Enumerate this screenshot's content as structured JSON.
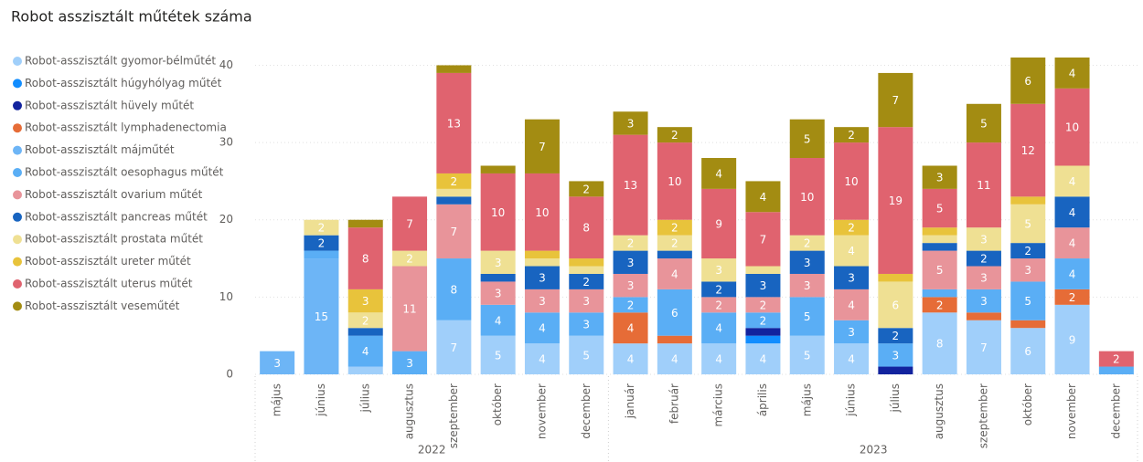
{
  "chart_data": {
    "type": "stacked_bar",
    "title": "Robot asszisztált műtétek száma",
    "categories": [
      "május",
      "június",
      "július",
      "augusztus",
      "szeptember",
      "október",
      "november",
      "december",
      "január",
      "február",
      "március",
      "április",
      "május",
      "június",
      "július",
      "augusztus",
      "szeptember",
      "október",
      "november",
      "december"
    ],
    "x_groups": [
      {
        "label": "2022",
        "count": 8
      },
      {
        "label": "2023",
        "count": 12
      }
    ],
    "ylim": [
      0,
      41
    ],
    "yticks": [
      0,
      10,
      20,
      30,
      40
    ],
    "grid": true,
    "legend": "left",
    "series": [
      {
        "name": "Robot-asszisztált gyomor-bélműtét",
        "color": "#a0cffa",
        "values": [
          null,
          null,
          1,
          null,
          7,
          5,
          4,
          5,
          4,
          4,
          4,
          4,
          5,
          4,
          null,
          8,
          7,
          6,
          9,
          null
        ]
      },
      {
        "name": "Robot-asszisztált húgyhólyag műtét",
        "color": "#118dff",
        "values": [
          null,
          null,
          null,
          null,
          null,
          null,
          null,
          null,
          null,
          null,
          null,
          1,
          null,
          null,
          null,
          null,
          null,
          null,
          null,
          null
        ]
      },
      {
        "name": "Robot-asszisztált hüvely műtét",
        "color": "#12239e",
        "values": [
          null,
          null,
          null,
          null,
          null,
          null,
          null,
          null,
          null,
          null,
          null,
          1,
          null,
          null,
          1,
          null,
          null,
          null,
          null,
          null
        ]
      },
      {
        "name": "Robot-asszisztált lymphadenectomia",
        "color": "#e66c37",
        "values": [
          null,
          null,
          null,
          null,
          null,
          null,
          null,
          null,
          4,
          1,
          null,
          null,
          null,
          null,
          null,
          2,
          1,
          1,
          2,
          null
        ]
      },
      {
        "name": "Robot-asszisztált májműtét",
        "color": "#6db5f6",
        "values": [
          3,
          15,
          null,
          null,
          null,
          null,
          null,
          null,
          null,
          null,
          null,
          null,
          null,
          null,
          null,
          null,
          null,
          null,
          null,
          null
        ]
      },
      {
        "name": "Robot-asszisztált oesophagus műtét",
        "color": "#5aaef5",
        "values": [
          null,
          1,
          4,
          3,
          8,
          4,
          4,
          3,
          2,
          6,
          4,
          2,
          5,
          3,
          3,
          1,
          3,
          5,
          4,
          1
        ]
      },
      {
        "name": "Robot-asszisztált ovarium műtét",
        "color": "#e8949a",
        "values": [
          null,
          null,
          null,
          11,
          7,
          3,
          3,
          3,
          3,
          4,
          2,
          2,
          3,
          4,
          null,
          5,
          3,
          3,
          4,
          null
        ]
      },
      {
        "name": "Robot-asszisztált pancreas műtét",
        "color": "#1864c0",
        "values": [
          null,
          2,
          1,
          null,
          1,
          1,
          3,
          2,
          3,
          1,
          2,
          3,
          3,
          3,
          2,
          1,
          2,
          2,
          4,
          null
        ]
      },
      {
        "name": "Robot-asszisztált prostata műtét",
        "color": "#efe093",
        "values": [
          null,
          2,
          2,
          2,
          1,
          3,
          1,
          1,
          2,
          2,
          3,
          1,
          2,
          4,
          6,
          1,
          3,
          5,
          4,
          null
        ]
      },
      {
        "name": "Robot-asszisztált ureter műtét",
        "color": "#e8c33b",
        "values": [
          null,
          null,
          3,
          null,
          2,
          null,
          1,
          1,
          null,
          2,
          null,
          null,
          null,
          2,
          1,
          1,
          null,
          1,
          null,
          null
        ]
      },
      {
        "name": "Robot-asszisztált uterus műtét",
        "color": "#e0636f",
        "values": [
          null,
          null,
          8,
          7,
          13,
          10,
          10,
          8,
          13,
          10,
          9,
          7,
          10,
          10,
          19,
          5,
          11,
          12,
          10,
          2
        ]
      },
      {
        "name": "Robot-asszisztált vesem­űtét",
        "color": "#a38c12",
        "values": [
          null,
          null,
          1,
          null,
          1,
          1,
          7,
          2,
          3,
          2,
          4,
          4,
          5,
          2,
          7,
          3,
          5,
          6,
          4,
          null
        ]
      }
    ]
  }
}
